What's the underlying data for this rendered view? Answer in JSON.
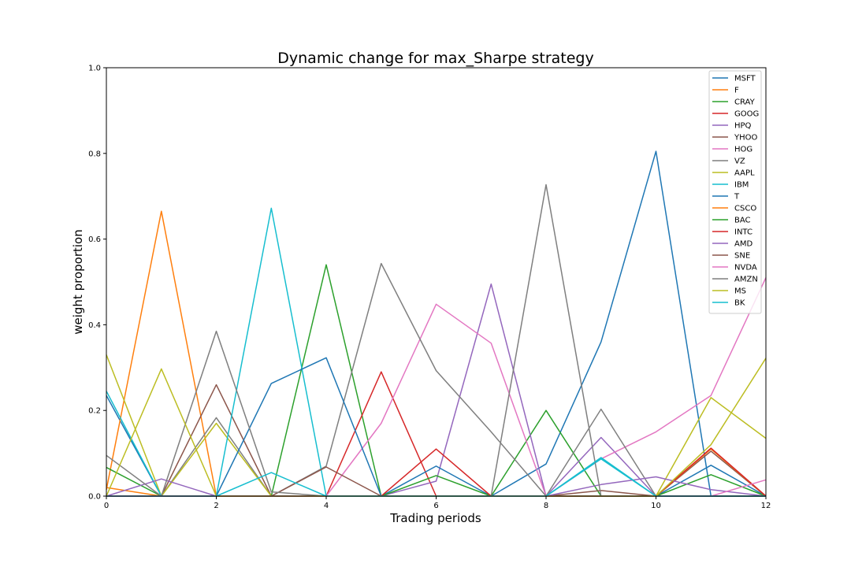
{
  "chart_data": {
    "type": "line",
    "title": "Dynamic change for max_Sharpe strategy",
    "xlabel": "Trading periods",
    "ylabel": "weight proportion",
    "xlim": [
      0,
      12
    ],
    "ylim": [
      0,
      1.0
    ],
    "xticks": [
      0,
      2,
      4,
      6,
      8,
      10,
      12
    ],
    "xtick_labels": [
      "0",
      "2",
      "4",
      "6",
      "8",
      "10",
      "12"
    ],
    "yticks": [
      0.0,
      0.2,
      0.4,
      0.6,
      0.8,
      1.0
    ],
    "ytick_labels": [
      "0.0",
      "0.2",
      "0.4",
      "0.6",
      "0.8",
      "1.0"
    ],
    "grid": false,
    "legend_position": "top-right",
    "x": [
      0,
      1,
      2,
      3,
      4,
      5,
      6,
      7,
      8,
      9,
      10,
      11,
      12
    ],
    "series": [
      {
        "name": "MSFT",
        "color": "#1f77b4",
        "values": [
          0.235,
          0,
          0,
          0,
          0,
          0,
          0,
          0,
          0.075,
          0.36,
          0.805,
          0,
          0
        ]
      },
      {
        "name": "F",
        "color": "#ff7f0e",
        "values": [
          0.015,
          0.665,
          0,
          0,
          0,
          0,
          0,
          0,
          0,
          0,
          0,
          0,
          0
        ]
      },
      {
        "name": "CRAY",
        "color": "#2ca02c",
        "values": [
          0,
          0,
          0,
          0,
          0.54,
          0,
          0,
          0,
          0.2,
          0,
          0,
          0,
          0
        ]
      },
      {
        "name": "GOOG",
        "color": "#d62728",
        "values": [
          0,
          0,
          0,
          0,
          0,
          0.29,
          0,
          0,
          0,
          0,
          0,
          0,
          0
        ]
      },
      {
        "name": "HPQ",
        "color": "#9467bd",
        "values": [
          0,
          0,
          0,
          0,
          0,
          0,
          0.035,
          0.495,
          0,
          0.137,
          0,
          0,
          0
        ]
      },
      {
        "name": "YHOO",
        "color": "#8c564b",
        "values": [
          0,
          0,
          0.26,
          0,
          0,
          0,
          0,
          0,
          0,
          0.013,
          0,
          0.105,
          0
        ]
      },
      {
        "name": "HOG",
        "color": "#e377c2",
        "values": [
          0,
          0,
          0,
          0,
          0,
          0.17,
          0.448,
          0.357,
          0,
          0.087,
          0.15,
          0.235,
          0.51
        ]
      },
      {
        "name": "VZ",
        "color": "#7f7f7f",
        "values": [
          0,
          0,
          0.183,
          0,
          0.07,
          0.543,
          0.293,
          0.15,
          0,
          0.203,
          0,
          0,
          0
        ]
      },
      {
        "name": "AAPL",
        "color": "#bcbd22",
        "values": [
          0.33,
          0,
          0.17,
          0,
          0,
          0,
          0,
          0,
          0,
          0,
          0,
          0.23,
          0.135
        ]
      },
      {
        "name": "IBM",
        "color": "#17becf",
        "values": [
          0.245,
          0,
          0,
          0.672,
          0,
          0,
          0,
          0,
          0,
          0.087,
          0,
          0,
          0
        ]
      },
      {
        "name": "T",
        "color": "#1f77b4",
        "values": [
          0,
          0,
          0,
          0.263,
          0.323,
          0,
          0.07,
          0,
          0,
          0,
          0,
          0.072,
          0
        ]
      },
      {
        "name": "CSCO",
        "color": "#ff7f0e",
        "values": [
          0.02,
          0,
          0,
          0,
          0,
          0,
          0,
          0,
          0,
          0,
          0,
          0.11,
          0
        ]
      },
      {
        "name": "BAC",
        "color": "#2ca02c",
        "values": [
          0.067,
          0,
          0,
          0,
          0,
          0,
          0.048,
          0,
          0,
          0,
          0,
          0.05,
          0
        ]
      },
      {
        "name": "INTC",
        "color": "#d62728",
        "values": [
          0,
          0,
          0,
          0,
          0,
          0,
          0.11,
          0,
          0,
          0,
          0,
          0.112,
          0
        ]
      },
      {
        "name": "AMD",
        "color": "#9467bd",
        "values": [
          0,
          0.04,
          0,
          0,
          0,
          0,
          0,
          0,
          0,
          0.027,
          0.045,
          0.015,
          0
        ]
      },
      {
        "name": "SNE",
        "color": "#8c564b",
        "values": [
          0,
          0,
          0,
          0,
          0.068,
          0,
          0,
          0,
          0,
          0,
          0,
          0,
          0
        ]
      },
      {
        "name": "NVDA",
        "color": "#e377c2",
        "values": [
          0,
          0,
          0,
          0,
          0,
          0,
          0,
          0,
          0,
          0,
          0,
          0,
          0.038
        ]
      },
      {
        "name": "AMZN",
        "color": "#7f7f7f",
        "values": [
          0.095,
          0,
          0.385,
          0.01,
          0,
          0,
          0,
          0,
          0.727,
          0,
          0,
          0,
          0
        ]
      },
      {
        "name": "MS",
        "color": "#bcbd22",
        "values": [
          0,
          0.297,
          0,
          0,
          0,
          0,
          0,
          0,
          0,
          0,
          0,
          0.12,
          0.322
        ]
      },
      {
        "name": "BK",
        "color": "#17becf",
        "values": [
          0,
          0,
          0,
          0.055,
          0,
          0,
          0,
          0,
          0,
          0.09,
          0,
          0,
          0
        ]
      }
    ]
  }
}
